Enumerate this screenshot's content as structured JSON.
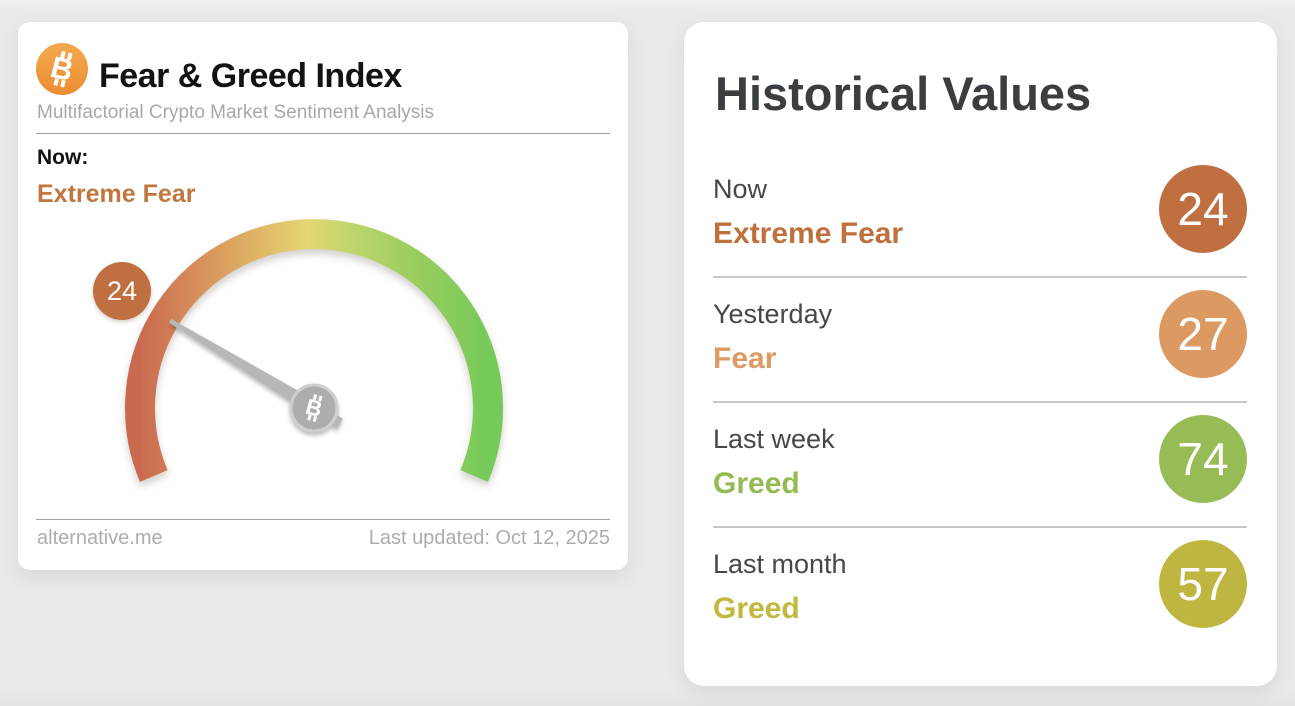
{
  "gauge_card": {
    "title": "Fear & Greed Index",
    "subtitle": "Multifactorial Crypto Market Sentiment Analysis",
    "now_label": "Now:",
    "now_status": "Extreme Fear",
    "value": "24",
    "footer": {
      "source": "alternative.me",
      "last_updated": "Last updated: Oct 12, 2025"
    },
    "colors": {
      "now_status": "#c1763e",
      "value_badge": "#c06f41",
      "logo_orange": "#f09a42"
    },
    "icons": {
      "logo": "bitcoin-icon",
      "hub": "bitcoin-icon"
    }
  },
  "historical_card": {
    "title": "Historical Values",
    "rows": [
      {
        "label": "Now",
        "status": "Extreme Fear",
        "value": "24",
        "status_color": "#c0703d",
        "badge_color": "#c06f41"
      },
      {
        "label": "Yesterday",
        "status": "Fear",
        "value": "27",
        "status_color": "#dd9b63",
        "badge_color": "#dc9a62"
      },
      {
        "label": "Last week",
        "status": "Greed",
        "value": "74",
        "status_color": "#94ba52",
        "badge_color": "#97bb55"
      },
      {
        "label": "Last month",
        "status": "Greed",
        "value": "57",
        "status_color": "#c1b83d",
        "badge_color": "#bfb642"
      }
    ]
  },
  "chart_data": {
    "type": "gauge",
    "title": "Fear & Greed Index",
    "min": 0,
    "max": 100,
    "value": 24,
    "classification": "Extreme Fear",
    "scale_colors": [
      "#c96a50",
      "#d68c5a",
      "#ddb163",
      "#e5d773",
      "#bcd56c",
      "#9ccd5e",
      "#76ca5a"
    ],
    "needle_color": "#9d9d9d",
    "history": [
      {
        "period": "Now",
        "value": 24,
        "classification": "Extreme Fear"
      },
      {
        "period": "Yesterday",
        "value": 27,
        "classification": "Fear"
      },
      {
        "period": "Last week",
        "value": 74,
        "classification": "Greed"
      },
      {
        "period": "Last month",
        "value": 57,
        "classification": "Greed"
      }
    ]
  }
}
